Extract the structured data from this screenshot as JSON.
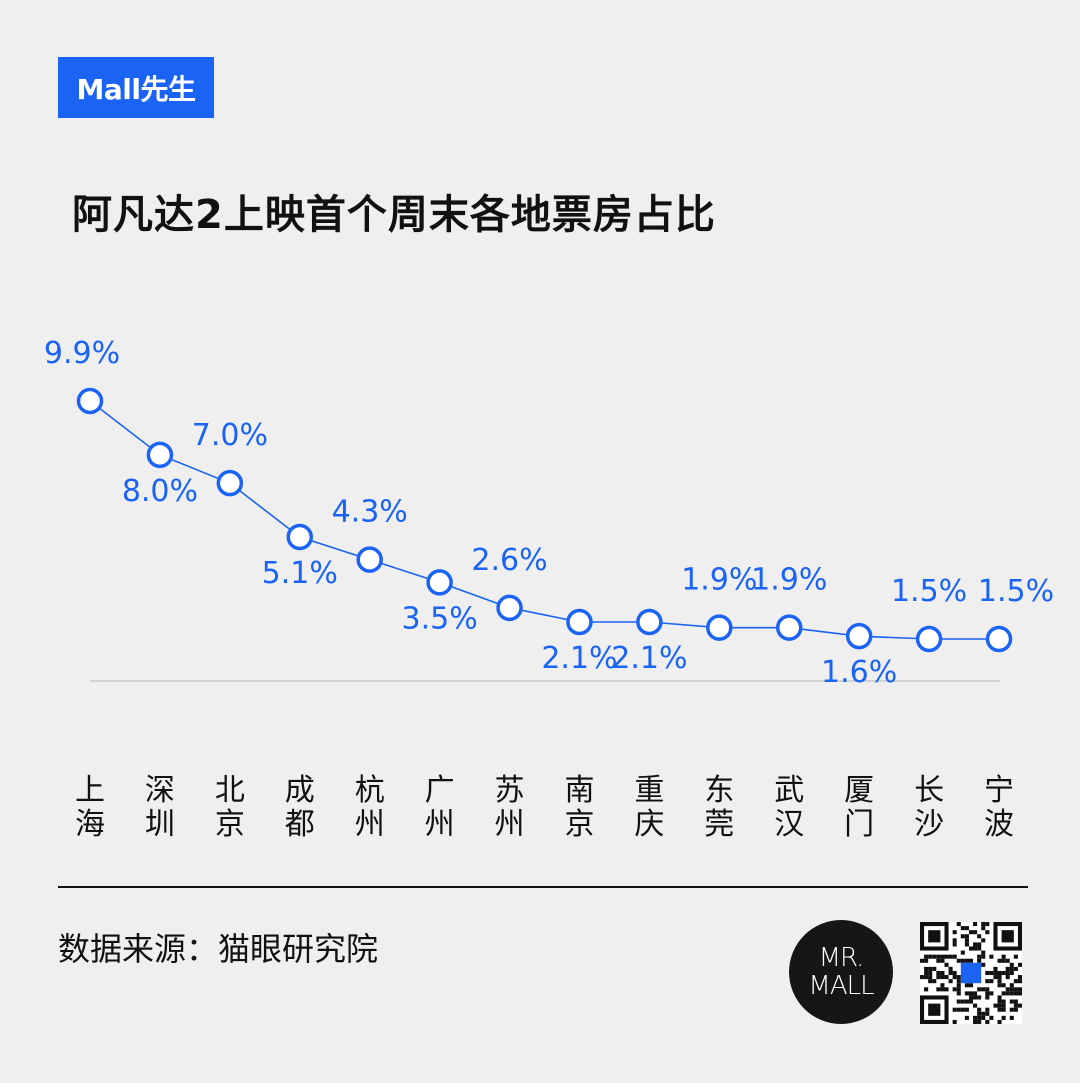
{
  "brand_tag": "Mall先生",
  "title": "阿凡达2上映首个周末各地票房占比",
  "source": "数据来源：猫眼研究院",
  "logo": {
    "line1": "MR.",
    "line2": "MALL"
  },
  "colors": {
    "accent": "#1a63f5",
    "text": "#111111",
    "background": "#efefef"
  },
  "chart_data": {
    "type": "line",
    "title": "阿凡达2上映首个周末各地票房占比",
    "xlabel": "",
    "ylabel": "",
    "categories": [
      "上海",
      "深圳",
      "北京",
      "成都",
      "杭州",
      "广州",
      "苏州",
      "南京",
      "重庆",
      "东莞",
      "武汉",
      "厦门",
      "长沙",
      "宁波"
    ],
    "values": [
      9.9,
      8.0,
      7.0,
      5.1,
      4.3,
      3.5,
      2.6,
      2.1,
      2.1,
      1.9,
      1.9,
      1.6,
      1.5,
      1.5
    ],
    "labels": [
      "9.9%",
      "8.0%",
      "7.0%",
      "5.1%",
      "4.3%",
      "3.5%",
      "2.6%",
      "2.1%",
      "2.1%",
      "1.9%",
      "1.9%",
      "1.6%",
      "1.5%",
      "1.5%"
    ],
    "label_positions": [
      "above",
      "below",
      "above",
      "below",
      "above",
      "below",
      "above",
      "below",
      "below",
      "above",
      "above",
      "below",
      "above",
      "above"
    ],
    "grid": false,
    "legend": "none",
    "line_color": "#1a63f5"
  }
}
